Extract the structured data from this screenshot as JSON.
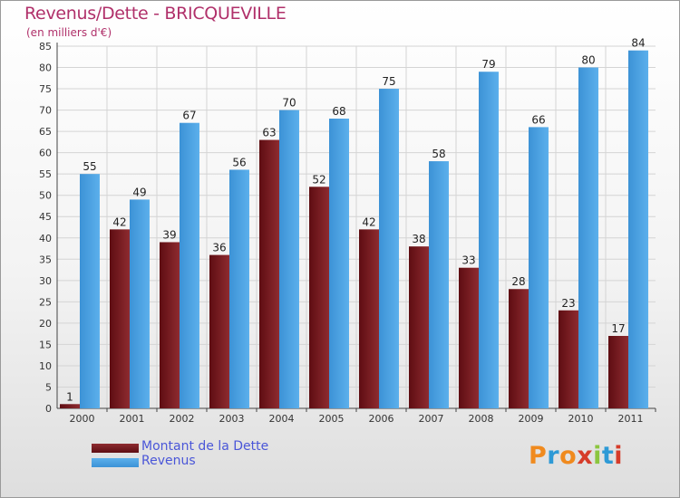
{
  "chart_data": {
    "type": "bar",
    "title": "Revenus/Dette - BRICQUEVILLE",
    "subtitle": "(en milliers d'€)",
    "categories": [
      "2000",
      "2001",
      "2002",
      "2003",
      "2004",
      "2005",
      "2006",
      "2007",
      "2008",
      "2009",
      "2010",
      "2011"
    ],
    "series": [
      {
        "name": "Montant de la Dette",
        "color": "#7a1a1f",
        "values": [
          1,
          42,
          39,
          36,
          63,
          52,
          42,
          38,
          33,
          28,
          23,
          17
        ]
      },
      {
        "name": "Revenus",
        "color": "#4aa3e3",
        "values": [
          55,
          49,
          67,
          56,
          70,
          68,
          75,
          58,
          79,
          66,
          80,
          84
        ]
      }
    ],
    "ylim": [
      0,
      85
    ],
    "yticks": [
      0,
      5,
      10,
      15,
      20,
      25,
      30,
      35,
      40,
      45,
      50,
      55,
      60,
      65,
      70,
      75,
      80,
      85
    ],
    "grid": true,
    "xlabel": "",
    "ylabel": "",
    "legend_position": "bottom-left"
  },
  "logo": {
    "text": "Proxiti",
    "colors": [
      "#f08a1e",
      "#2e9ad6",
      "#f08a1e",
      "#d63c2a",
      "#8cc63f",
      "#2e9ad6",
      "#d63c2a"
    ]
  }
}
